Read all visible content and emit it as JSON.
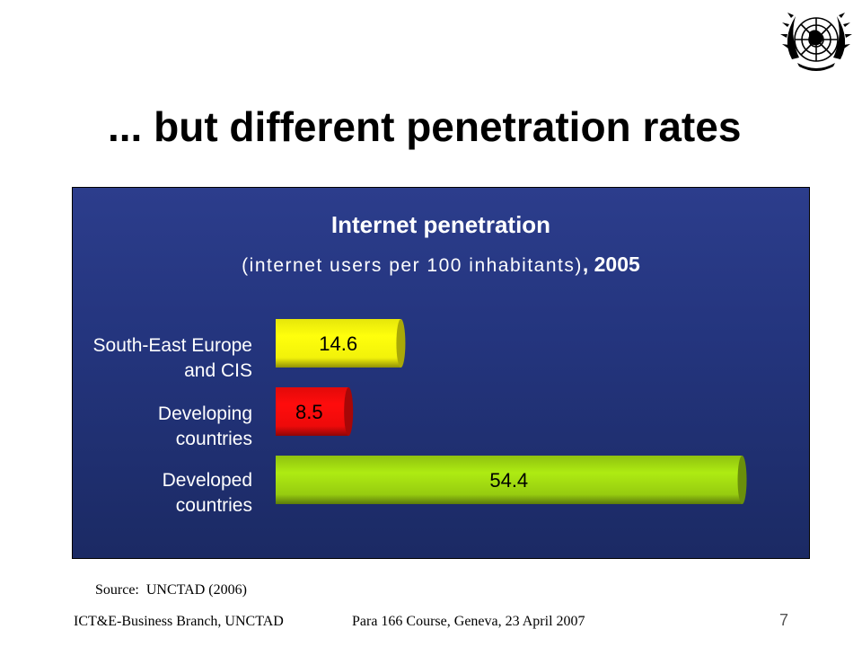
{
  "slide": {
    "title": "... but different penetration rates",
    "logo_icon": "un-emblem-icon",
    "source": "Source:  UNCTAD (2006)",
    "footer_left": "ICT&E-Business Branch, UNCTAD",
    "footer_center": "Para 166 Course, Geneva, 23 April 2007",
    "page_number": "7"
  },
  "chart_data": {
    "type": "bar",
    "orientation": "horizontal",
    "title": "Internet penetration",
    "subtitle": "(internet users per 100 inhabitants)",
    "subtitle_suffix": ", 2005",
    "categories": [
      [
        "South-East Europe",
        "and CIS"
      ],
      [
        "Developing",
        "countries"
      ],
      [
        "Developed",
        "countries"
      ]
    ],
    "values": [
      14.6,
      8.5,
      54.4
    ],
    "value_labels": [
      "14.6",
      "8.5",
      "54.4"
    ],
    "colors": [
      "#f2f20a",
      "#ee0a0a",
      "#97cc10"
    ],
    "label_colors": [
      "#000000",
      "#000000",
      "#000000"
    ],
    "background": "#24357e",
    "grid": false,
    "legend": "none"
  }
}
